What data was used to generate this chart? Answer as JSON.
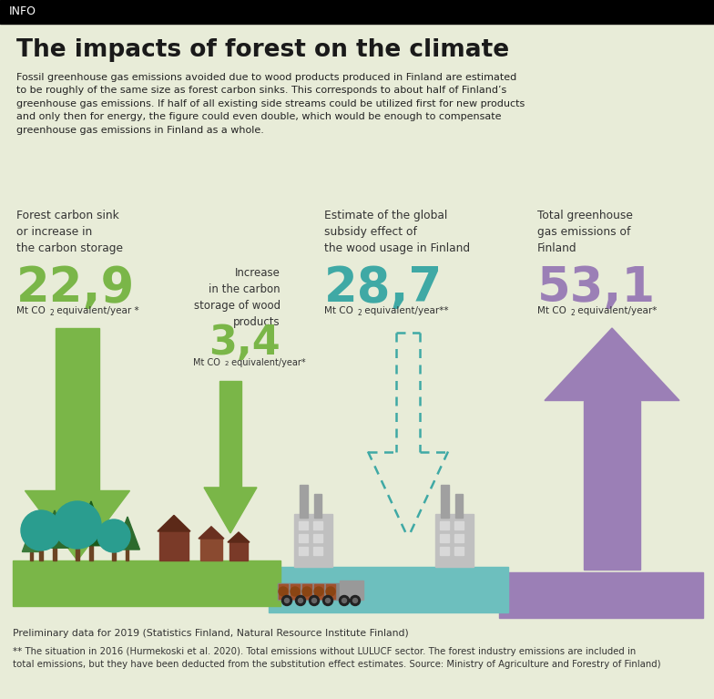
{
  "title": "The impacts of forest on the climate",
  "header_bg": "#000000",
  "header_text": "INFO",
  "bg_color": "#e8ecd8",
  "body_text": "Fossil greenhouse gas emissions avoided due to wood products produced in Finland are estimated\nto be roughly of the same size as forest carbon sinks. This corresponds to about half of Finland’s\ngreenhouse gas emissions. If half of all existing side streams could be utilized first for new products\nand only then for energy, the figure could even double, which would be enough to compensate\ngreenhouse gas emissions in Finland as a whole.",
  "stat1_label": "Forest carbon sink\nor increase in\nthe carbon storage",
  "stat1_value": "22,9",
  "stat1_color": "#7ab648",
  "stat2_label": "Increase\nin the carbon\nstorage of wood\nproducts",
  "stat2_value": "3,4",
  "stat2_color": "#7ab648",
  "stat3_label": "Estimate of the global\nsubsidy effect of\nthe wood usage in Finland",
  "stat3_value": "28,7",
  "stat3_color": "#3fa9a5",
  "stat4_label": "Total greenhouse\ngas emissions of\nFinland",
  "stat4_value": "53,1",
  "stat4_color": "#9b7fb6",
  "arrow1_color": "#7ab648",
  "arrow2_color": "#7ab648",
  "arrow3_color": "#3fa9a5",
  "arrow4_color": "#9b7fb6",
  "ground1_color": "#7ab648",
  "ground2_color": "#6dbfbe",
  "ground3_color": "#9b7fb6",
  "footnote1": "Preliminary data for 2019 (Statistics Finland, Natural Resource Institute Finland)",
  "footnote2": "** The situation in 2016 (Hurmekoski et al. 2020). Total emissions without LULUCF sector. The forest industry emissions are included in\ntotal emissions, but they have been deducted from the substitution effect estimates. Source: Ministry of Agriculture and Forestry of Finland)"
}
